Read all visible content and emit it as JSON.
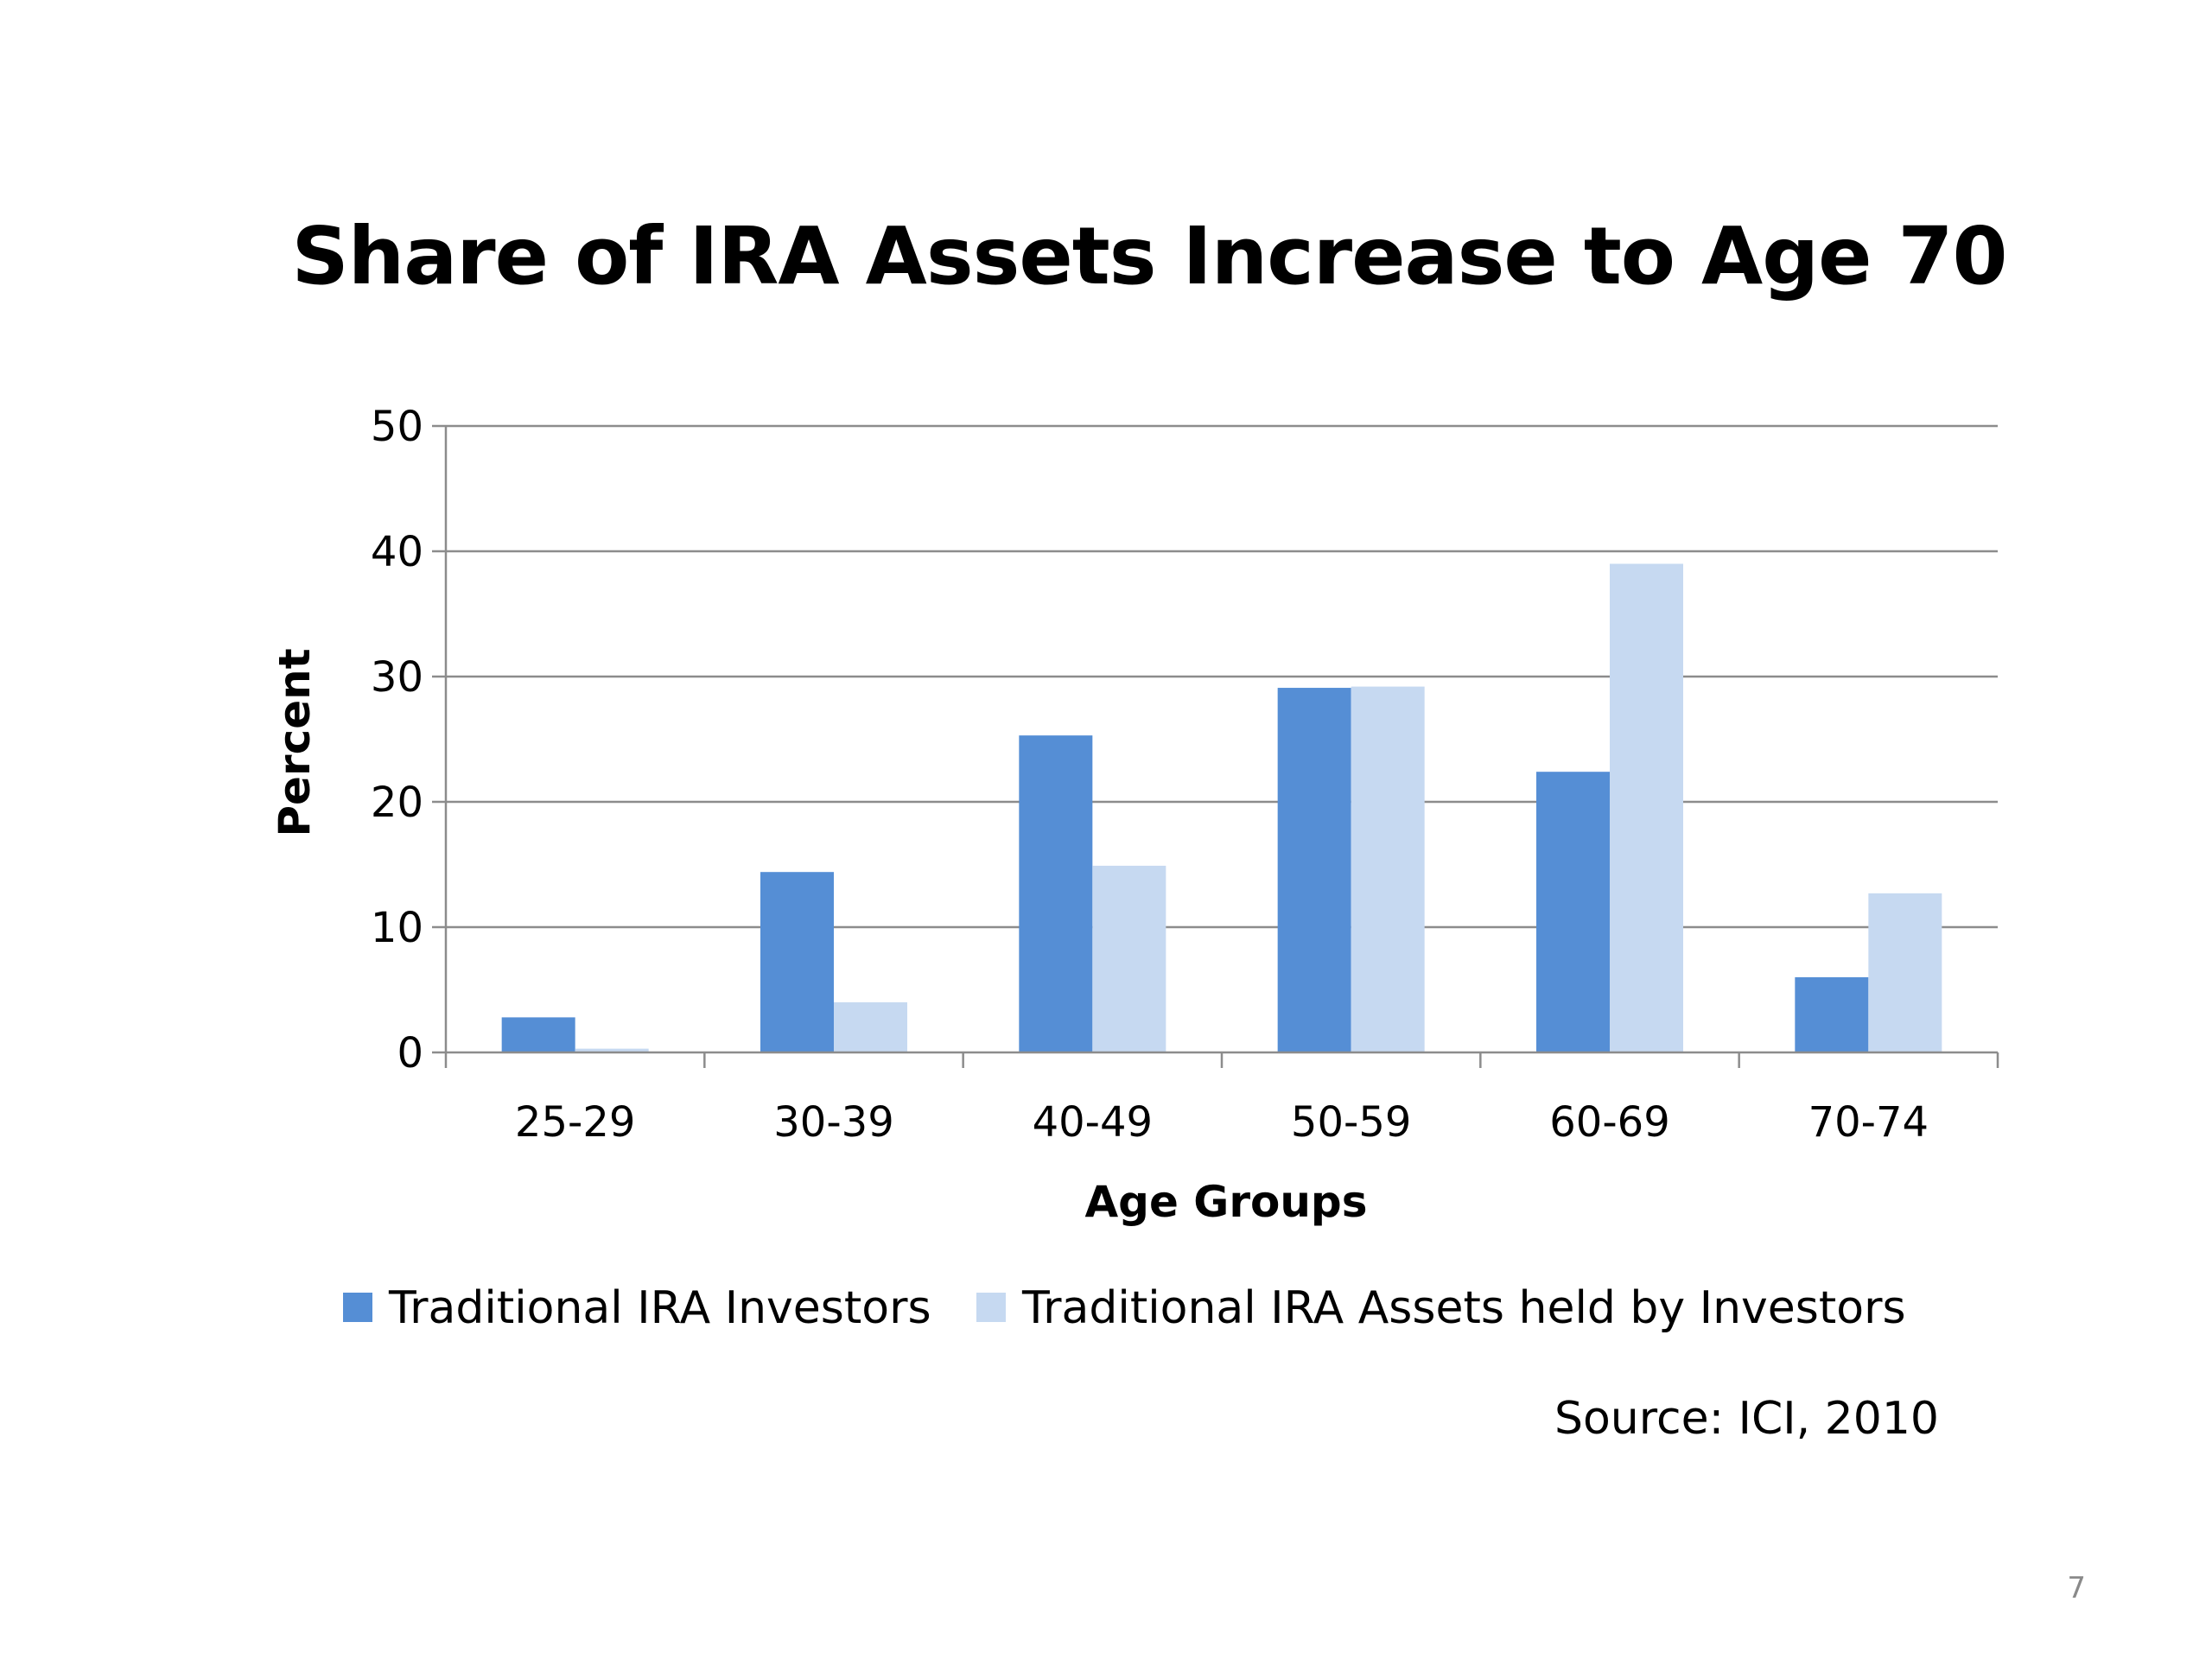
{
  "slide": {
    "title": "Share of IRA Assets Increase to Age 70",
    "source": "Source: ICI, 2010",
    "page_number": "7"
  },
  "colors": {
    "series1": "#558ed5",
    "series2": "#c6d9f1",
    "gridline": "#8c8c8c",
    "axis": "#8c8c8c"
  },
  "chart_data": {
    "type": "bar",
    "title": "Share of IRA Assets Increase to Age 70",
    "xlabel": "Age Groups",
    "ylabel": "Percent",
    "ylim": [
      0,
      50
    ],
    "yticks": [
      "0",
      "10",
      "20",
      "30",
      "40",
      "50"
    ],
    "grid": true,
    "legend_position": "bottom",
    "categories": [
      "25-29",
      "30-39",
      "40-49",
      "50-59",
      "60-69",
      "70-74"
    ],
    "series": [
      {
        "name": "Traditional IRA Investors",
        "values": [
          2.8,
          14.4,
          25.3,
          29.1,
          22.4,
          6.0
        ]
      },
      {
        "name": "Traditional IRA Assets held by Investors",
        "values": [
          0.3,
          4.0,
          14.9,
          29.2,
          39.0,
          12.7
        ]
      }
    ]
  }
}
